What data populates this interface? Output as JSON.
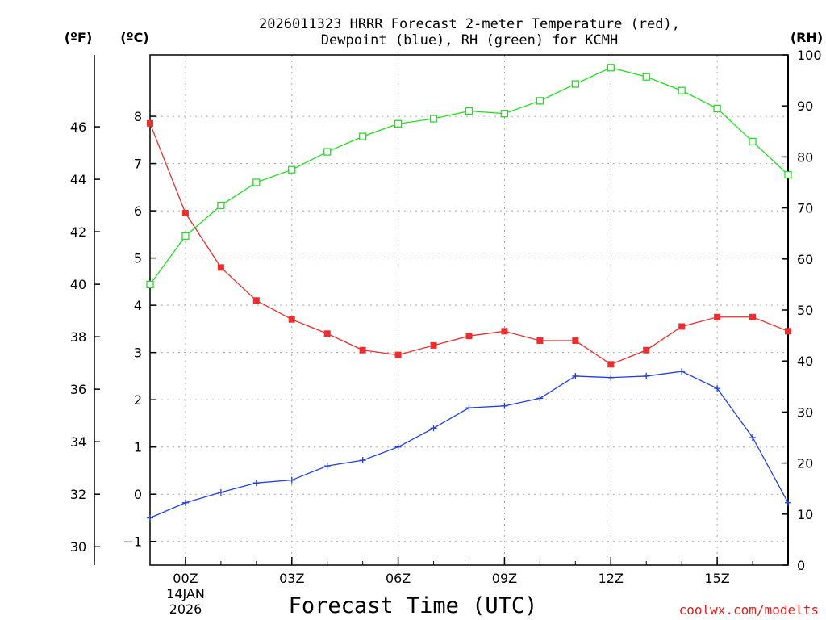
{
  "chart_data": {
    "type": "line",
    "title_line1": "2026011323 HRRR Forecast 2-meter Temperature (red),",
    "title_line2": "Dewpoint (blue), RH (green) for KCMH",
    "xlabel": "Forecast Time (UTC)",
    "credit": "coolwx.com/modelts",
    "units": {
      "fahrenheit": "(ºF)",
      "celsius": "(ºC)",
      "rh": "(RH)"
    },
    "x_hours": [
      -1,
      0,
      1,
      2,
      3,
      4,
      5,
      6,
      7,
      8,
      9,
      10,
      11,
      12,
      13,
      14,
      15,
      16,
      17
    ],
    "x_range": [
      -1,
      17
    ],
    "x_ticks": [
      {
        "hour": 0,
        "label": "00Z"
      },
      {
        "hour": 3,
        "label": "03Z"
      },
      {
        "hour": 6,
        "label": "06Z"
      },
      {
        "hour": 9,
        "label": "09Z"
      },
      {
        "hour": 12,
        "label": "12Z"
      },
      {
        "hour": 15,
        "label": "15Z"
      }
    ],
    "date_label_line1": "14JAN",
    "date_label_line2": "2026",
    "celsius_range": [
      -1.5,
      9.3
    ],
    "celsius_ticks": [
      -1,
      0,
      1,
      2,
      3,
      4,
      5,
      6,
      7,
      8
    ],
    "fahrenheit_ticks": [
      30,
      32,
      34,
      36,
      38,
      40,
      42,
      44,
      46
    ],
    "rh_range": [
      0,
      100
    ],
    "rh_ticks": [
      0,
      10,
      20,
      30,
      40,
      50,
      60,
      70,
      80,
      90,
      100
    ],
    "series": [
      {
        "name": "Temperature",
        "color": "#e83030",
        "marker": "filled-square",
        "axis": "celsius",
        "values": [
          7.85,
          5.95,
          4.8,
          4.1,
          3.7,
          3.4,
          3.05,
          2.95,
          3.15,
          3.35,
          3.45,
          3.25,
          3.25,
          2.75,
          3.05,
          3.55,
          3.75,
          3.75,
          3.45
        ]
      },
      {
        "name": "Dewpoint",
        "color": "#2040e0",
        "marker": "plus",
        "axis": "celsius",
        "values": [
          -0.5,
          -0.18,
          0.04,
          0.24,
          0.3,
          0.6,
          0.72,
          1.0,
          1.4,
          1.83,
          1.87,
          2.03,
          2.5,
          2.47,
          2.5,
          2.6,
          2.24,
          1.2,
          -0.18
        ]
      },
      {
        "name": "RH",
        "color": "#20e020",
        "marker": "open-square",
        "axis": "rh",
        "values": [
          55,
          64.5,
          70.5,
          75,
          77.5,
          81,
          84,
          86.5,
          87.5,
          89,
          88.5,
          91,
          94.3,
          97.5,
          95.7,
          93,
          89.5,
          83,
          76.5
        ]
      }
    ]
  }
}
